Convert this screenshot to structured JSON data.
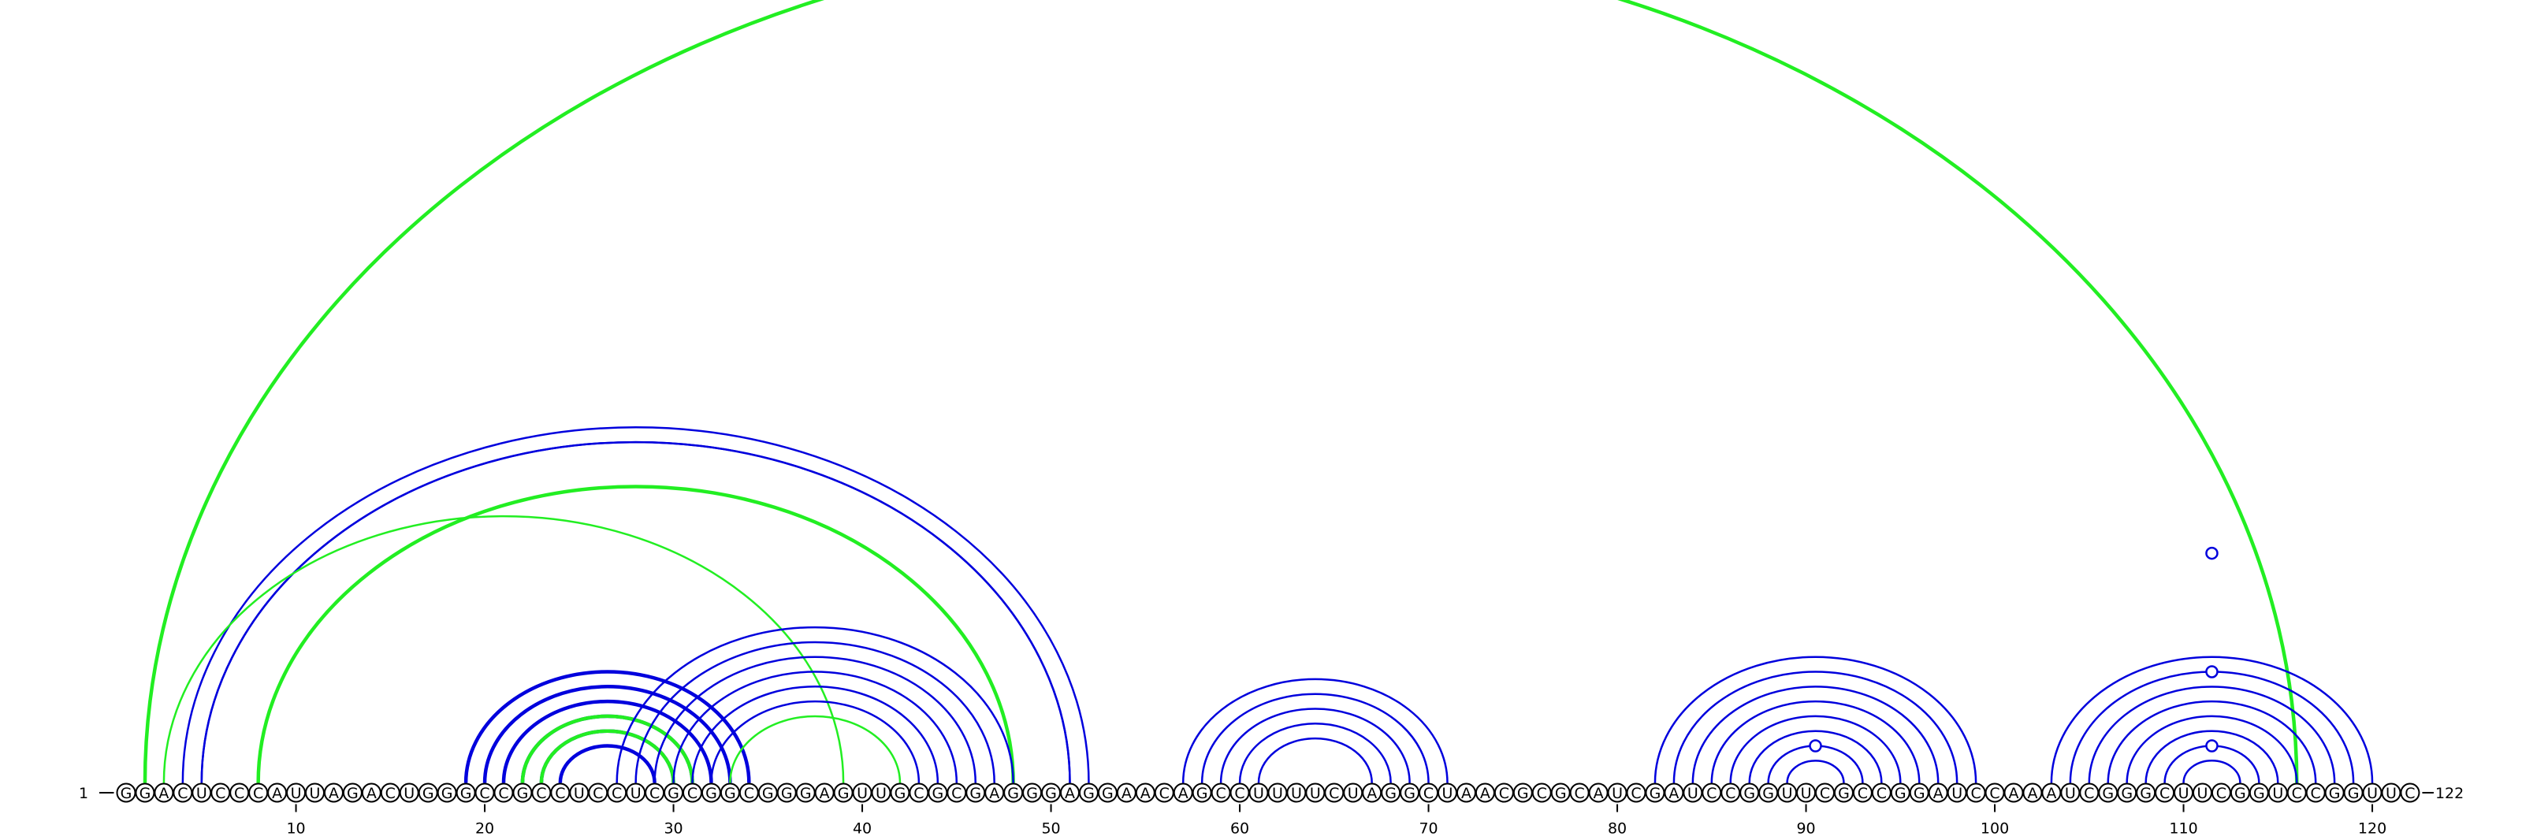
{
  "diagram": {
    "sequence": "GGACUCCCAUUAGACUGGGCCGCCUCCUCGCGGCGGGAGUUGCGCGAGGGAGGAACAGCCUUUUCUAGGCUAACGCGCAUCGAUCCGGUUCGCCGGAUCCAAAUCGGGCUUCGGUCCGGUUC",
    "start_label": "1",
    "end_label": "122",
    "tick_positions": [
      10,
      20,
      30,
      40,
      50,
      60,
      70,
      80,
      90,
      100,
      110,
      120
    ],
    "colors": {
      "blue": "#0000dd",
      "green": "#22ee22"
    },
    "helices": [
      {
        "color": "green",
        "i": 2,
        "j": 116,
        "count": 1,
        "thick": true
      },
      {
        "color": "blue",
        "i": 4,
        "j": 52,
        "count": 2,
        "thick": false
      },
      {
        "color": "blue",
        "i": 5,
        "j": 51,
        "count": 1,
        "thick": false
      },
      {
        "color": "green",
        "i": 3,
        "j": 39,
        "count": 1,
        "thick": false
      },
      {
        "color": "green",
        "i": 8,
        "j": 48,
        "count": 1,
        "thick": true
      },
      {
        "color": "blue",
        "i": 19,
        "j": 34,
        "count": 6,
        "thick": true
      },
      {
        "color": "green",
        "i": 22,
        "j": 31,
        "count": 2,
        "thick": true
      },
      {
        "color": "blue",
        "i": 27,
        "j": 48,
        "count": 6,
        "thick": false
      },
      {
        "color": "green",
        "i": 33,
        "j": 42,
        "count": 1,
        "thick": false
      },
      {
        "color": "blue",
        "i": 57,
        "j": 71,
        "count": 5,
        "thick": false
      },
      {
        "color": "blue",
        "i": 82,
        "j": 99,
        "count": 8,
        "thick": false
      },
      {
        "color": "blue",
        "i": 103,
        "j": 120,
        "count": 8,
        "thick": false
      }
    ],
    "loop_markers": [
      {
        "color": "blue",
        "x": 90.5,
        "height": 2.5
      },
      {
        "color": "blue",
        "x": 111.5,
        "height": 15.5
      },
      {
        "color": "blue",
        "x": 111.5,
        "height": 7.5
      },
      {
        "color": "blue",
        "x": 111.5,
        "height": 2.5
      }
    ]
  }
}
